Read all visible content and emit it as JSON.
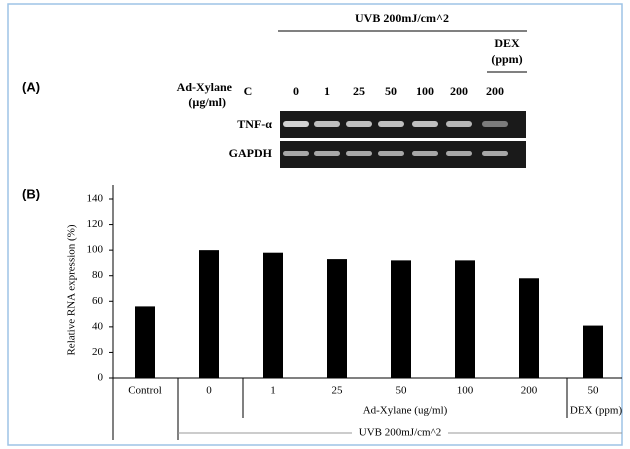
{
  "panel_a": {
    "label": "(A)",
    "treatment": "UVB 200mJ/cm^2",
    "dex_header": [
      "DEX",
      "(ppm)"
    ],
    "row_header": [
      "Ad-Xylane",
      "(µg/ml)"
    ],
    "lanes": [
      "C",
      "0",
      "1",
      "25",
      "50",
      "100",
      "200",
      "200"
    ],
    "genes": [
      "TNF-α",
      "GAPDH"
    ]
  },
  "chart_data": {
    "type": "bar",
    "panel_label": "(B)",
    "y_label": "Relative RNA expression (%)",
    "categories": [
      "Control",
      "0",
      "1",
      "25",
      "50",
      "100",
      "200",
      "50"
    ],
    "values": [
      56,
      100,
      98,
      93,
      92,
      92,
      78,
      41
    ],
    "color": "#000000",
    "ylim": [
      0,
      140
    ],
    "yticks": [
      0,
      20,
      40,
      60,
      80,
      100,
      120,
      140
    ],
    "groups": [
      "Ad-Xylane (ug/ml)",
      "DEX (ppm)",
      "UVB 200mJ/cm^2"
    ]
  }
}
